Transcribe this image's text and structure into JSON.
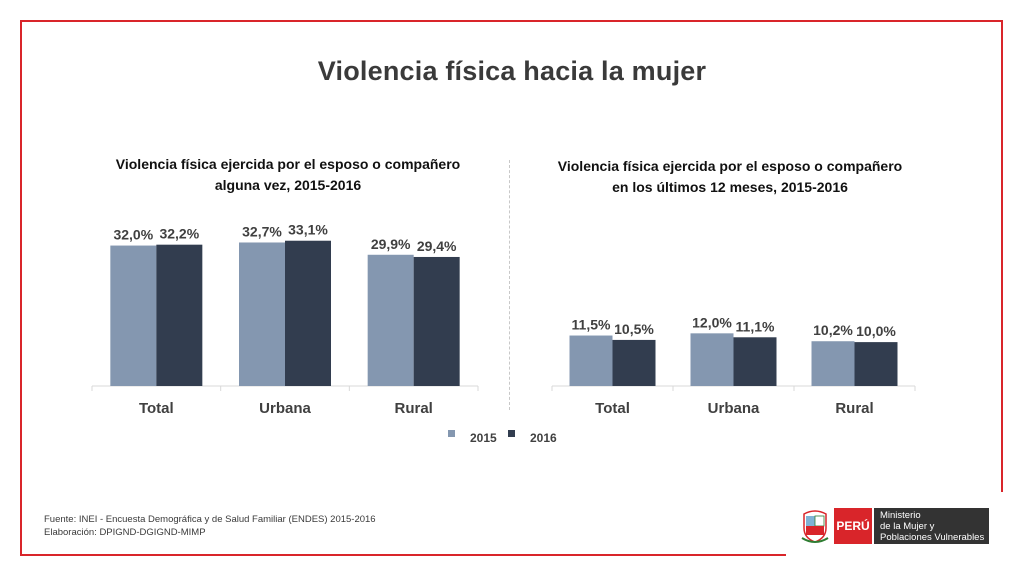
{
  "slide": {
    "title": "Violencia física hacia la mujer",
    "source_line1": "Fuente: INEI - Encuesta Demográfica y de Salud Familiar (ENDES) 2015-2016",
    "source_line2": "Elaboración: DPIGND-DGIGND-MIMP"
  },
  "logo": {
    "country": "PERÚ",
    "ministry_line1": "Ministerio",
    "ministry_line2": "de la Mujer y",
    "ministry_line3": "Poblaciones Vulnerables"
  },
  "colors": {
    "frame": "#d9252a",
    "series_2015": "#8497b0",
    "series_2016": "#323d4f",
    "logo_red": "#d9252a",
    "logo_dark": "#333333"
  },
  "legend": {
    "position": "bottom-center"
  },
  "chart_data": [
    {
      "type": "bar",
      "title_line1": "Violencia física ejercida por el esposo o compañero",
      "title_line2": "alguna vez, 2015-2016",
      "categories": [
        "Total",
        "Urbana",
        "Rural"
      ],
      "series": [
        {
          "name": "2015",
          "values": [
            32.0,
            32.7,
            29.9
          ],
          "labels": [
            "32,0%",
            "32,7%",
            "29,9%"
          ],
          "color": "#8497b0"
        },
        {
          "name": "2016",
          "values": [
            32.2,
            33.1,
            29.4
          ],
          "labels": [
            "32,2%",
            "33,1%",
            "29,4%"
          ],
          "color": "#323d4f"
        }
      ],
      "ylim": [
        0,
        36
      ],
      "grid": false
    },
    {
      "type": "bar",
      "title_line1": "Violencia física ejercida por el esposo o compañero",
      "title_line2": "en los últimos 12 meses, 2015-2016",
      "categories": [
        "Total",
        "Urbana",
        "Rural"
      ],
      "series": [
        {
          "name": "2015",
          "values": [
            11.5,
            12.0,
            10.2
          ],
          "labels": [
            "11,5%",
            "12,0%",
            "10,2%"
          ],
          "color": "#8497b0"
        },
        {
          "name": "2016",
          "values": [
            10.5,
            11.1,
            10.0
          ],
          "labels": [
            "10,5%",
            "11,1%",
            "10,0%"
          ],
          "color": "#323d4f"
        }
      ],
      "ylim": [
        0,
        36
      ],
      "grid": false
    }
  ]
}
